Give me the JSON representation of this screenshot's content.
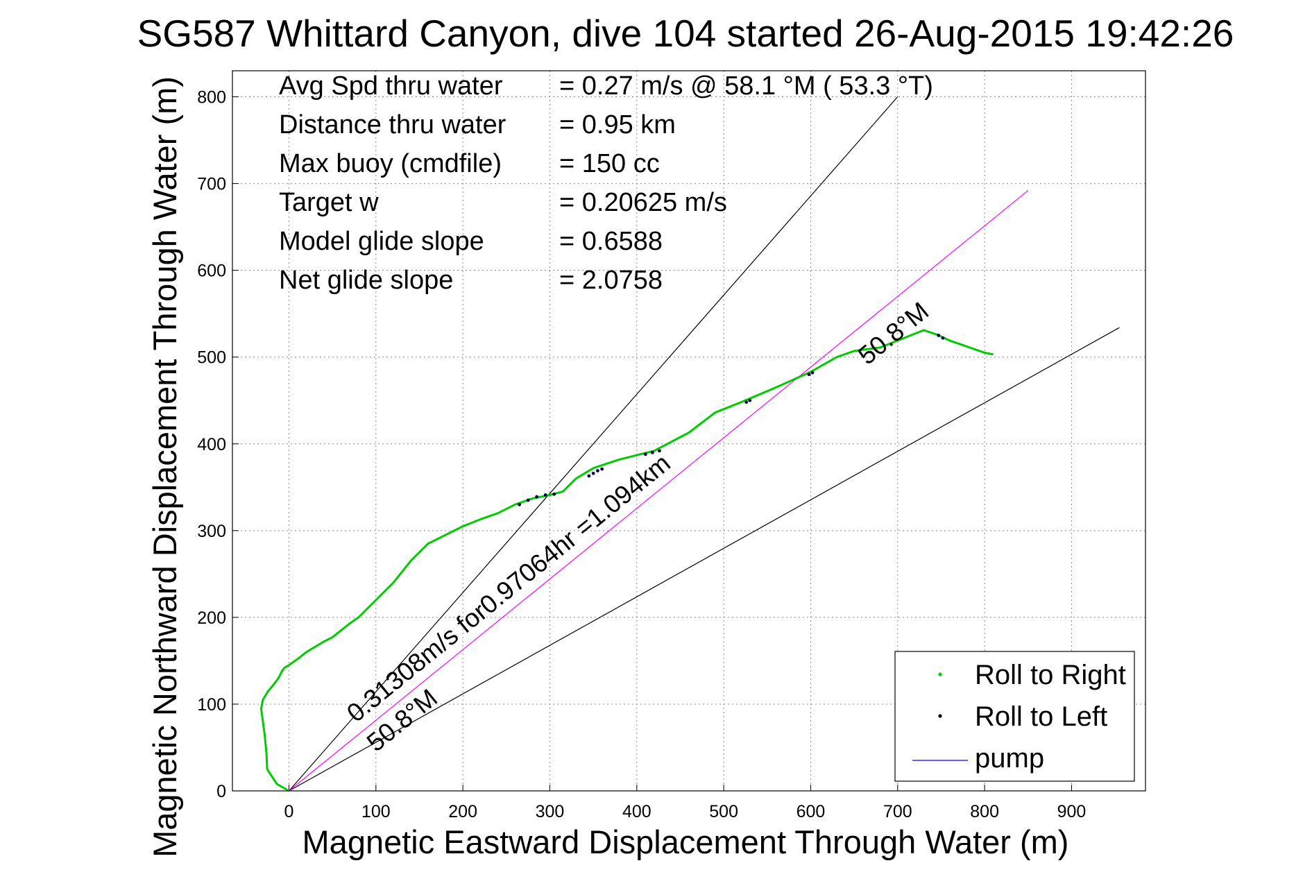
{
  "chart_data": {
    "type": "line",
    "title": "SG587 Whittard Canyon, dive 104 started 26-Aug-2015 19:42:26",
    "xlabel": "Magnetic Eastward Displacement Through Water (m)",
    "ylabel": "Magnetic Northward Displacement Through Water (m)",
    "xlim": [
      -65,
      985
    ],
    "ylim": [
      0,
      830
    ],
    "xticks": [
      0,
      100,
      200,
      300,
      400,
      500,
      600,
      700,
      800,
      900
    ],
    "yticks": [
      0,
      100,
      200,
      300,
      400,
      500,
      600,
      700,
      800
    ],
    "grid": true,
    "legend_position": "bottom-right",
    "stats": [
      {
        "label": "Avg Spd thru water",
        "value": "=  0.27 m/s @  58.1 °M ( 53.3 °T)"
      },
      {
        "label": "Distance thru water",
        "value": "=  0.95 km"
      },
      {
        "label": "Max buoy (cmdfile)",
        "value": "= 150 cc"
      },
      {
        "label": "Target w",
        "value": "= 0.20625 m/s"
      },
      {
        "label": "Model glide slope",
        "value": "= 0.6588"
      },
      {
        "label": "Net glide slope",
        "value": "= 2.0758"
      }
    ],
    "reference_lines": [
      {
        "name": "upper",
        "points": [
          [
            0,
            0
          ],
          [
            700,
            800
          ]
        ],
        "color": "#000000"
      },
      {
        "name": "lower",
        "points": [
          [
            0,
            0
          ],
          [
            955,
            534
          ]
        ],
        "color": "#000000"
      },
      {
        "name": "heading",
        "points": [
          [
            0,
            0
          ],
          [
            850,
            692
          ]
        ],
        "color": "#ff00ff"
      }
    ],
    "annotations": [
      {
        "text": "0.31308m/s for0.97064hr =1.094km",
        "x": 77,
        "y": 78,
        "rotation_deg": 39.1
      },
      {
        "text": "50.8°M",
        "x": 100,
        "y": 44,
        "rotation_deg": 39.1
      },
      {
        "text": "50.8°M",
        "x": 665,
        "y": 490,
        "rotation_deg": 39.1
      }
    ],
    "series": [
      {
        "name": "Roll to Right",
        "color": "#00cc00",
        "marker": "dot",
        "x": [
          0,
          -14,
          -25,
          -26,
          -28,
          -30,
          -32,
          -30,
          -24,
          -18,
          -12,
          -8,
          -5,
          0,
          10,
          20,
          30,
          40,
          50,
          60,
          70,
          80,
          100,
          120,
          140,
          160,
          180,
          200,
          220,
          240,
          260,
          280,
          300,
          315,
          330,
          350,
          380,
          420,
          460,
          490,
          520,
          560,
          600,
          630,
          650,
          680,
          710,
          730,
          745,
          760,
          780,
          800,
          810
        ],
        "y": [
          0,
          8,
          25,
          45,
          65,
          80,
          95,
          105,
          115,
          122,
          130,
          138,
          142,
          145,
          152,
          160,
          166,
          172,
          177,
          185,
          193,
          200,
          220,
          240,
          265,
          285,
          295,
          305,
          313,
          320,
          330,
          337,
          341,
          345,
          360,
          372,
          382,
          392,
          413,
          436,
          448,
          465,
          483,
          500,
          507,
          511,
          523,
          531,
          526,
          519,
          512,
          505,
          503
        ]
      },
      {
        "name": "Roll to Left",
        "color": "#00004f",
        "marker": "dot",
        "x": [
          265,
          275,
          285,
          295,
          305,
          345,
          350,
          355,
          360,
          410,
          418,
          426,
          526,
          530,
          598,
          602,
          747,
          752
        ],
        "y": [
          330,
          335,
          339,
          341,
          342,
          363,
          366,
          369,
          371,
          388,
          390,
          392,
          448,
          450,
          480,
          482,
          525,
          522
        ]
      }
    ],
    "legend": [
      {
        "label": "Roll to Right",
        "color": "#00cc00",
        "style": "dot"
      },
      {
        "label": "Roll to Left",
        "color": "#000000",
        "style": "dot"
      },
      {
        "label": "pump",
        "color": "#0000ff",
        "style": "line"
      }
    ]
  }
}
